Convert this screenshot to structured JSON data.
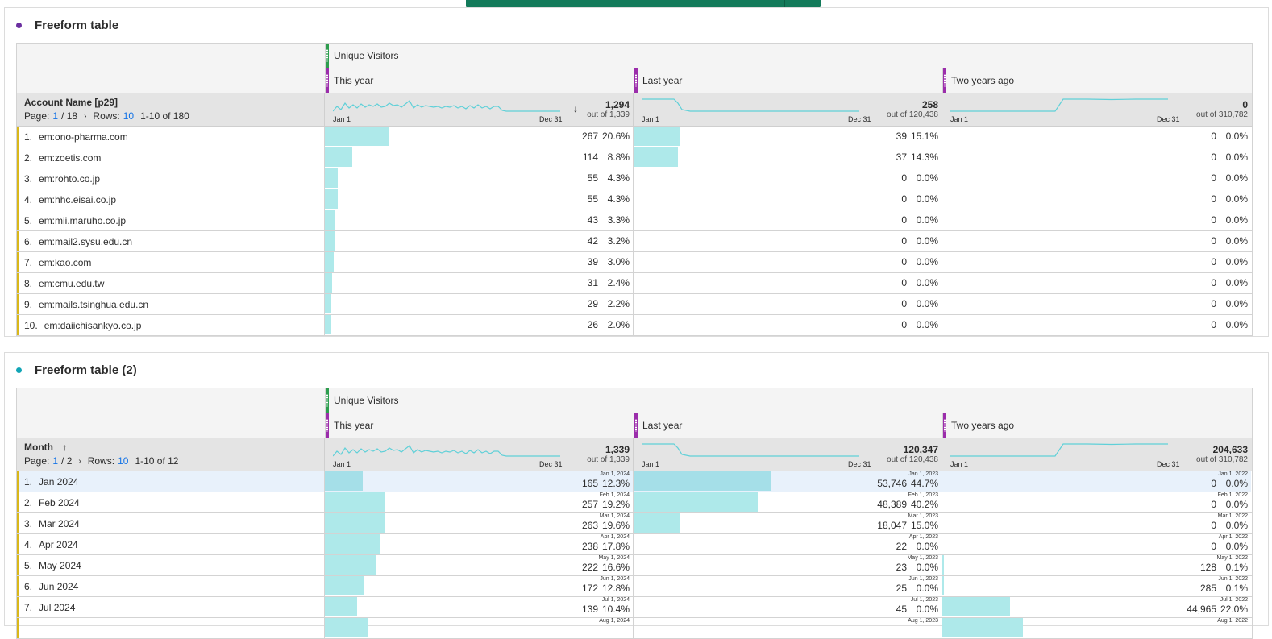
{
  "colors": {
    "panel1_dot": "#6b2fa0",
    "panel2_dot": "#12a5b6",
    "grip_green": "#2d9d4e",
    "grip_purple": "#9b2dab",
    "bar": "#aee9ea",
    "accent": "#1473e6",
    "row_marker": "#d9b71a"
  },
  "panel1": {
    "title": "Freeform table",
    "metric": "Unique Visitors",
    "columns": [
      {
        "label": "This year",
        "total": "1,294",
        "out_of": "out of 1,339",
        "start": "Jan 1",
        "end": "Dec 31",
        "sort_icon": "↓"
      },
      {
        "label": "Last year",
        "total": "258",
        "out_of": "out of 120,438",
        "start": "Jan 1",
        "end": "Dec 31"
      },
      {
        "label": "Two years ago",
        "total": "0",
        "out_of": "out of 310,782",
        "start": "Jan 1",
        "end": "Dec 31"
      }
    ],
    "dimension": "Account Name [p29]",
    "pager": {
      "page_label": "Page:",
      "page": "1",
      "of": "/ 18",
      "rows_label": "Rows:",
      "rows": "10",
      "range": "1-10 of 180"
    },
    "rows": [
      {
        "n": "1.",
        "name": "em:ono-pharma.com",
        "c": [
          {
            "v": "267",
            "p": "20.6%",
            "f": 0.206
          },
          {
            "v": "39",
            "p": "15.1%",
            "f": 0.151
          },
          {
            "v": "0",
            "p": "0.0%",
            "f": 0
          }
        ]
      },
      {
        "n": "2.",
        "name": "em:zoetis.com",
        "c": [
          {
            "v": "114",
            "p": "8.8%",
            "f": 0.088
          },
          {
            "v": "37",
            "p": "14.3%",
            "f": 0.143
          },
          {
            "v": "0",
            "p": "0.0%",
            "f": 0
          }
        ]
      },
      {
        "n": "3.",
        "name": "em:rohto.co.jp",
        "c": [
          {
            "v": "55",
            "p": "4.3%",
            "f": 0.043
          },
          {
            "v": "0",
            "p": "0.0%",
            "f": 0
          },
          {
            "v": "0",
            "p": "0.0%",
            "f": 0
          }
        ]
      },
      {
        "n": "4.",
        "name": "em:hhc.eisai.co.jp",
        "c": [
          {
            "v": "55",
            "p": "4.3%",
            "f": 0.043
          },
          {
            "v": "0",
            "p": "0.0%",
            "f": 0
          },
          {
            "v": "0",
            "p": "0.0%",
            "f": 0
          }
        ]
      },
      {
        "n": "5.",
        "name": "em:mii.maruho.co.jp",
        "c": [
          {
            "v": "43",
            "p": "3.3%",
            "f": 0.033
          },
          {
            "v": "0",
            "p": "0.0%",
            "f": 0
          },
          {
            "v": "0",
            "p": "0.0%",
            "f": 0
          }
        ]
      },
      {
        "n": "6.",
        "name": "em:mail2.sysu.edu.cn",
        "c": [
          {
            "v": "42",
            "p": "3.2%",
            "f": 0.032
          },
          {
            "v": "0",
            "p": "0.0%",
            "f": 0
          },
          {
            "v": "0",
            "p": "0.0%",
            "f": 0
          }
        ]
      },
      {
        "n": "7.",
        "name": "em:kao.com",
        "c": [
          {
            "v": "39",
            "p": "3.0%",
            "f": 0.03
          },
          {
            "v": "0",
            "p": "0.0%",
            "f": 0
          },
          {
            "v": "0",
            "p": "0.0%",
            "f": 0
          }
        ]
      },
      {
        "n": "8.",
        "name": "em:cmu.edu.tw",
        "c": [
          {
            "v": "31",
            "p": "2.4%",
            "f": 0.024
          },
          {
            "v": "0",
            "p": "0.0%",
            "f": 0
          },
          {
            "v": "0",
            "p": "0.0%",
            "f": 0
          }
        ]
      },
      {
        "n": "9.",
        "name": "em:mails.tsinghua.edu.cn",
        "c": [
          {
            "v": "29",
            "p": "2.2%",
            "f": 0.022
          },
          {
            "v": "0",
            "p": "0.0%",
            "f": 0
          },
          {
            "v": "0",
            "p": "0.0%",
            "f": 0
          }
        ]
      },
      {
        "n": "10.",
        "name": "em:daiichisankyo.co.jp",
        "c": [
          {
            "v": "26",
            "p": "2.0%",
            "f": 0.02
          },
          {
            "v": "0",
            "p": "0.0%",
            "f": 0
          },
          {
            "v": "0",
            "p": "0.0%",
            "f": 0
          }
        ]
      }
    ]
  },
  "panel2": {
    "title": "Freeform table (2)",
    "metric": "Unique Visitors",
    "columns": [
      {
        "label": "This year",
        "total": "1,339",
        "out_of": "out of 1,339",
        "start": "Jan 1",
        "end": "Dec 31"
      },
      {
        "label": "Last year",
        "total": "120,347",
        "out_of": "out of 120,438",
        "start": "Jan 1",
        "end": "Dec 31"
      },
      {
        "label": "Two years ago",
        "total": "204,633",
        "out_of": "out of 310,782",
        "start": "Jan 1",
        "end": "Dec 31"
      }
    ],
    "dimension": "Month",
    "sort_icon": "↑",
    "pager": {
      "page_label": "Page:",
      "page": "1",
      "of": "/ 2",
      "rows_label": "Rows:",
      "rows": "10",
      "range": "1-10 of 12"
    },
    "rows": [
      {
        "n": "1.",
        "name": "Jan 2024",
        "c": [
          {
            "v": "165",
            "p": "12.3%",
            "d": "Jan 1, 2024",
            "f": 0.123
          },
          {
            "v": "53,746",
            "p": "44.7%",
            "d": "Jan 1, 2023",
            "f": 0.447
          },
          {
            "v": "0",
            "p": "0.0%",
            "d": "Jan 1, 2022",
            "f": 0
          }
        ]
      },
      {
        "n": "2.",
        "name": "Feb 2024",
        "c": [
          {
            "v": "257",
            "p": "19.2%",
            "d": "Feb 1, 2024",
            "f": 0.192
          },
          {
            "v": "48,389",
            "p": "40.2%",
            "d": "Feb 1, 2023",
            "f": 0.402
          },
          {
            "v": "0",
            "p": "0.0%",
            "d": "Feb 1, 2022",
            "f": 0
          }
        ]
      },
      {
        "n": "3.",
        "name": "Mar 2024",
        "c": [
          {
            "v": "263",
            "p": "19.6%",
            "d": "Mar 1, 2024",
            "f": 0.196
          },
          {
            "v": "18,047",
            "p": "15.0%",
            "d": "Mar 1, 2023",
            "f": 0.15
          },
          {
            "v": "0",
            "p": "0.0%",
            "d": "Mar 1, 2022",
            "f": 0
          }
        ]
      },
      {
        "n": "4.",
        "name": "Apr 2024",
        "c": [
          {
            "v": "238",
            "p": "17.8%",
            "d": "Apr 1, 2024",
            "f": 0.178
          },
          {
            "v": "22",
            "p": "0.0%",
            "d": "Apr 1, 2023",
            "f": 0
          },
          {
            "v": "0",
            "p": "0.0%",
            "d": "Apr 1, 2022",
            "f": 0
          }
        ]
      },
      {
        "n": "5.",
        "name": "May 2024",
        "c": [
          {
            "v": "222",
            "p": "16.6%",
            "d": "May 1, 2024",
            "f": 0.166
          },
          {
            "v": "23",
            "p": "0.0%",
            "d": "May 1, 2023",
            "f": 0
          },
          {
            "v": "128",
            "p": "0.1%",
            "d": "May 1, 2022",
            "f": 0.001
          }
        ]
      },
      {
        "n": "6.",
        "name": "Jun 2024",
        "c": [
          {
            "v": "172",
            "p": "12.8%",
            "d": "Jun 1, 2024",
            "f": 0.128
          },
          {
            "v": "25",
            "p": "0.0%",
            "d": "Jun 1, 2023",
            "f": 0
          },
          {
            "v": "285",
            "p": "0.1%",
            "d": "Jun 1, 2022",
            "f": 0.001
          }
        ]
      },
      {
        "n": "7.",
        "name": "Jul 2024",
        "c": [
          {
            "v": "139",
            "p": "10.4%",
            "d": "Jul 1, 2024",
            "f": 0.104
          },
          {
            "v": "45",
            "p": "0.0%",
            "d": "Jul 1, 2023",
            "f": 0
          },
          {
            "v": "44,965",
            "p": "22.0%",
            "d": "Jul 1, 2022",
            "f": 0.22
          }
        ]
      },
      {
        "n": "",
        "name": "",
        "c": [
          {
            "v": "",
            "p": "",
            "d": "Aug 1, 2024",
            "f": 0.14
          },
          {
            "v": "",
            "p": "",
            "d": "Aug 1, 2023",
            "f": 0
          },
          {
            "v": "",
            "p": "",
            "d": "Aug 1, 2022",
            "f": 0.26
          }
        ]
      }
    ]
  }
}
